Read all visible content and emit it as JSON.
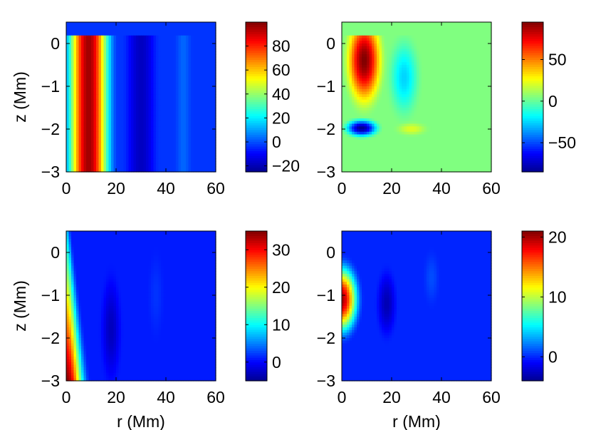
{
  "colormap": [
    "#00008f",
    "#0000ff",
    "#0080ff",
    "#00ffff",
    "#80ff80",
    "#ffff00",
    "#ff8000",
    "#ff0000",
    "#800000"
  ],
  "chart_data": [
    {
      "type": "heatmap",
      "panel": "top-left",
      "title": "",
      "xlabel": "",
      "ylabel": "z (Mm)",
      "xlim": [
        0,
        60
      ],
      "ylim": [
        -3,
        0.5
      ],
      "xticks": [
        "0",
        "20",
        "40",
        "60"
      ],
      "yticks": [
        "0",
        "−1",
        "−2",
        "−3"
      ],
      "colorbar": {
        "range": [
          -25,
          100
        ],
        "ticks": [
          -20,
          0,
          20,
          40,
          60,
          80
        ],
        "tick_labels": [
          "−20",
          "0",
          "20",
          "40",
          "60",
          "80"
        ]
      },
      "field_top": 0.2,
      "background": -3,
      "features": [
        {
          "shape": "column",
          "r_center": 9,
          "r_halfwidth": 12,
          "value": 96
        },
        {
          "shape": "column",
          "r_center": 30,
          "r_halfwidth": 8,
          "value": -18
        },
        {
          "shape": "column",
          "r_center": 47,
          "r_halfwidth": 4,
          "value": 3
        }
      ]
    },
    {
      "type": "heatmap",
      "panel": "top-right",
      "title": "",
      "xlabel": "",
      "ylabel": "",
      "xlim": [
        0,
        60
      ],
      "ylim": [
        -3,
        0.5
      ],
      "xticks": [
        "0",
        "20",
        "40",
        "60"
      ],
      "yticks": [
        "0",
        "−1",
        "−2",
        "−3"
      ],
      "colorbar": {
        "range": [
          -85,
          95
        ],
        "ticks": [
          -50,
          0,
          50
        ],
        "tick_labels": [
          "−50",
          "0",
          "50"
        ]
      },
      "field_top": 0.2,
      "background": 5,
      "features": [
        {
          "shape": "blob",
          "r_center": 9,
          "z_center": -0.4,
          "r_halfwidth": 9.5,
          "z_halfwidth": 1.4,
          "value": 95
        },
        {
          "shape": "blob",
          "r_center": 8,
          "z_center": -1.98,
          "r_halfwidth": 9,
          "z_halfwidth": 0.28,
          "value": -85
        },
        {
          "shape": "blob",
          "r_center": 25,
          "z_center": -0.8,
          "r_halfwidth": 8,
          "z_halfwidth": 1.2,
          "value": -25
        },
        {
          "shape": "blob",
          "r_center": 28,
          "z_center": -2.0,
          "r_halfwidth": 8,
          "z_halfwidth": 0.2,
          "value": 22
        }
      ]
    },
    {
      "type": "heatmap",
      "panel": "bottom-left",
      "title": "",
      "xlabel": "r (Mm)",
      "ylabel": "z (Mm)",
      "xlim": [
        0,
        60
      ],
      "ylim": [
        -3,
        0.5
      ],
      "xticks": [
        "0",
        "20",
        "40",
        "60"
      ],
      "yticks": [
        "0",
        "−1",
        "−2",
        "−3"
      ],
      "colorbar": {
        "range": [
          -5,
          35
        ],
        "ticks": [
          0,
          10,
          20,
          30
        ],
        "tick_labels": [
          "0",
          "10",
          "20",
          "30"
        ]
      },
      "field_top": 0.5,
      "background": 1,
      "features": [
        {
          "shape": "wedge",
          "r_width_top": 2,
          "r_width_bottom": 10,
          "value_top": 8,
          "value_bottom": 35
        },
        {
          "shape": "blob",
          "r_center": 18,
          "z_center": -1.8,
          "r_halfwidth": 5,
          "z_halfwidth": 1.6,
          "value": -3
        },
        {
          "shape": "blob",
          "r_center": 36,
          "z_center": -1.0,
          "r_halfwidth": 4,
          "z_halfwidth": 1.3,
          "value": 2
        }
      ]
    },
    {
      "type": "heatmap",
      "panel": "bottom-right",
      "title": "",
      "xlabel": "r (Mm)",
      "ylabel": "",
      "xlim": [
        0,
        60
      ],
      "ylim": [
        -3,
        0.5
      ],
      "xticks": [
        "0",
        "20",
        "40",
        "60"
      ],
      "yticks": [
        "0",
        "−1",
        "−2",
        "−3"
      ],
      "colorbar": {
        "range": [
          -4,
          21
        ],
        "ticks": [
          0,
          10,
          20
        ],
        "tick_labels": [
          "0",
          "10",
          "20"
        ]
      },
      "field_top": 0.5,
      "background": 0,
      "features": [
        {
          "shape": "blob",
          "r_center": 0,
          "z_center": -1.1,
          "r_halfwidth": 9,
          "z_halfwidth": 1.1,
          "value": 20
        },
        {
          "shape": "blob",
          "r_center": 18,
          "z_center": -1.2,
          "r_halfwidth": 5,
          "z_halfwidth": 1.0,
          "value": -3
        },
        {
          "shape": "blob",
          "r_center": 36,
          "z_center": -0.6,
          "r_halfwidth": 4,
          "z_halfwidth": 0.8,
          "value": 1
        }
      ]
    }
  ]
}
